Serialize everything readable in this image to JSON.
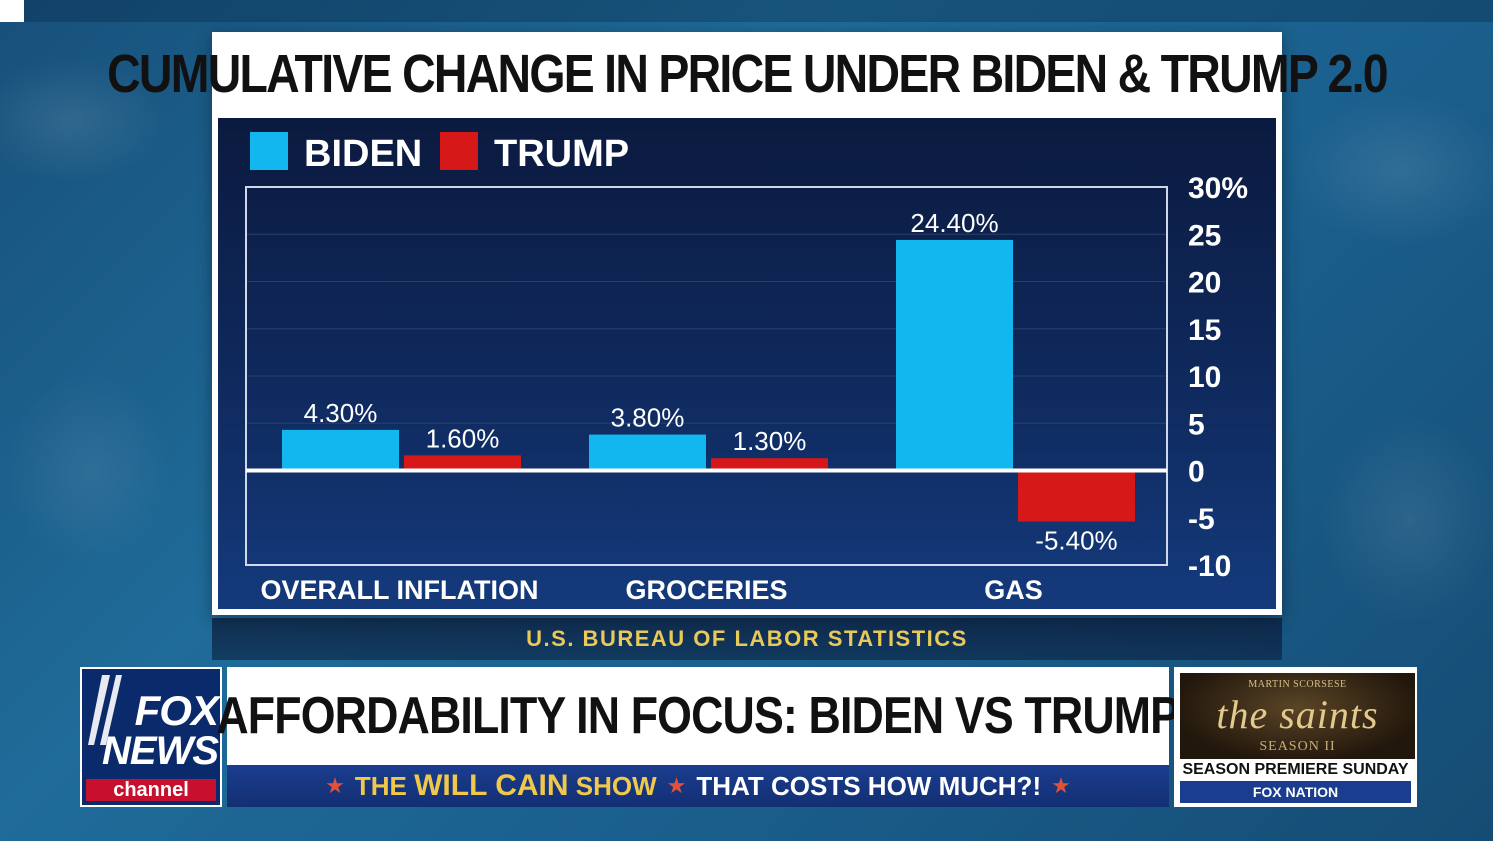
{
  "chart_data": {
    "type": "bar",
    "title": "CUMULATIVE CHANGE IN PRICE UNDER BIDEN & TRUMP 2.0",
    "categories": [
      "OVERALL INFLATION",
      "GROCERIES",
      "GAS"
    ],
    "series": [
      {
        "name": "BIDEN",
        "color": "#12b7f0",
        "values": [
          4.3,
          3.8,
          24.4
        ],
        "labels": [
          "4.30%",
          "3.80%",
          "24.40%"
        ]
      },
      {
        "name": "TRUMP",
        "color": "#d61818",
        "values": [
          1.6,
          1.3,
          -5.4
        ],
        "labels": [
          "1.60%",
          "1.30%",
          "-5.40%"
        ]
      }
    ],
    "ylim": [
      -10,
      30
    ],
    "yticks": [
      30,
      25,
      20,
      15,
      10,
      5,
      0,
      -5,
      -10
    ],
    "ytick_labels": [
      "30%",
      "25",
      "20",
      "15",
      "10",
      "5",
      "0",
      "-5",
      "-10"
    ],
    "y_axis_side": "right",
    "legend_position": "top-left",
    "xlabel": "",
    "ylabel": "",
    "source": "U.S. BUREAU OF LABOR STATISTICS"
  },
  "lower_third": {
    "logo": {
      "line1": "FOX",
      "line2": "NEWS",
      "line3": "channel"
    },
    "headline": "AFFORDABILITY IN FOCUS: BIDEN VS TRUMP",
    "ticker": {
      "show_the": "THE",
      "show_name": "WILL CAIN",
      "show_suffix": "SHOW",
      "segment": "THAT COSTS HOW MUCH?!",
      "star": "★"
    }
  },
  "promo": {
    "presenter": "MARTIN SCORSESE",
    "title": "the saints",
    "season": "SEASON II",
    "premiere": "SEASON PREMIERE SUNDAY",
    "network": "FOX NATION"
  }
}
